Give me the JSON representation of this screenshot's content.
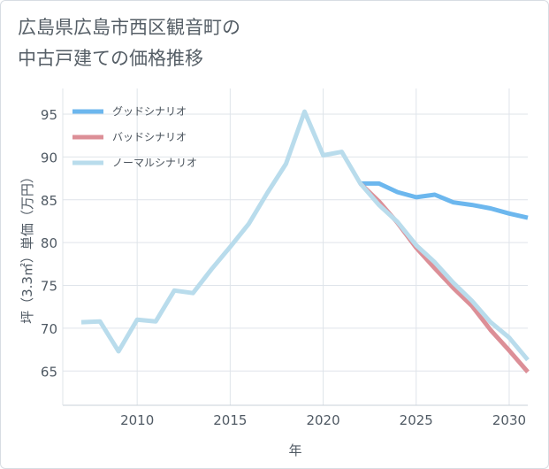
{
  "page": {
    "title_line1": "広島県広島市西区観音町の",
    "title_line2": "中古戸建ての価格推移"
  },
  "chart_data": {
    "type": "line",
    "xlabel": "年",
    "ylabel": "坪（3.3㎡）単価（万円）",
    "xlim": [
      2006,
      2031
    ],
    "ylim": [
      61,
      98
    ],
    "x_ticks": [
      2010,
      2015,
      2020,
      2025,
      2030
    ],
    "y_ticks": [
      65,
      70,
      75,
      80,
      85,
      90,
      95
    ],
    "grid": true,
    "legend_position": "top-left",
    "series": [
      {
        "name": "グッドシナリオ",
        "color": "#6cb7ee",
        "x": [
          2022,
          2023,
          2024,
          2025,
          2026,
          2027,
          2028,
          2029,
          2030,
          2031
        ],
        "values": [
          86.9,
          86.9,
          85.9,
          85.3,
          85.6,
          84.7,
          84.4,
          84.0,
          83.4,
          82.9
        ]
      },
      {
        "name": "バッドシナリオ",
        "color": "#dc8f97",
        "x": [
          2022,
          2023,
          2024,
          2025,
          2026,
          2027,
          2028,
          2029,
          2030,
          2031
        ],
        "values": [
          86.9,
          84.8,
          82.3,
          79.4,
          77.0,
          74.7,
          72.6,
          69.8,
          67.4,
          64.9
        ]
      },
      {
        "name": "ノーマルシナリオ",
        "color": "#b9dcec",
        "x": [
          2007,
          2008,
          2009,
          2010,
          2011,
          2012,
          2013,
          2014,
          2015,
          2016,
          2017,
          2018,
          2019,
          2020,
          2021,
          2022,
          2023,
          2024,
          2025,
          2026,
          2027,
          2028,
          2029,
          2030,
          2031
        ],
        "values": [
          70.7,
          70.8,
          67.3,
          71.0,
          70.8,
          74.4,
          74.1,
          76.9,
          79.5,
          82.2,
          85.8,
          89.2,
          95.3,
          90.2,
          90.6,
          86.9,
          84.4,
          82.4,
          79.7,
          77.7,
          75.3,
          73.2,
          70.7,
          68.9,
          66.3
        ]
      }
    ]
  }
}
